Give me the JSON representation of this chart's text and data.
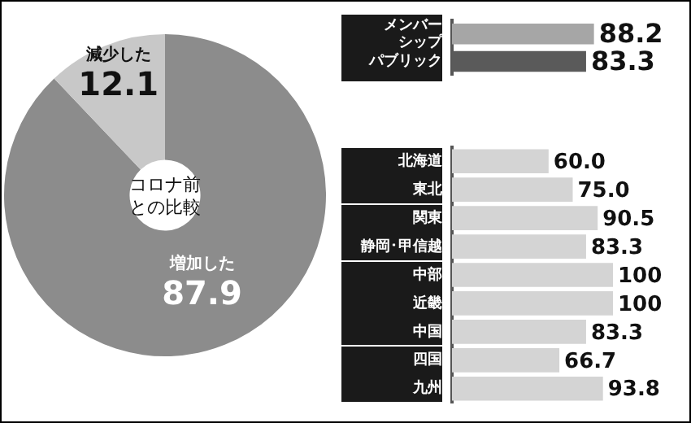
{
  "chart_data": [
    {
      "type": "donut",
      "categories": [
        "増加した",
        "減少した"
      ],
      "values": [
        87.9,
        12.1
      ],
      "colors": [
        "#8c8c8c",
        "#c8c8c8"
      ],
      "value_labels": [
        "87.9",
        "12.1"
      ],
      "annotations": [
        "コロナ前との比較"
      ]
    },
    {
      "type": "bar",
      "orientation": "horizontal",
      "categories": [
        "メンバーシップ",
        "パブリック"
      ],
      "values": [
        88.2,
        83.3
      ],
      "colors": [
        "#a6a6a6",
        "#5a5a5a"
      ],
      "tick_labels": "y",
      "value_labels": [
        "88.2",
        "83.3"
      ]
    },
    {
      "type": "bar",
      "orientation": "horizontal",
      "categories": [
        "北海道",
        "東北",
        "関東",
        "静岡･甲信越",
        "中部",
        "近畿",
        "中国",
        "四国",
        "九州"
      ],
      "values": [
        60.0,
        75.0,
        90.5,
        83.3,
        100,
        100,
        83.3,
        66.7,
        93.8
      ],
      "colors": [
        "#d4d4d4",
        "#d4d4d4",
        "#d4d4d4",
        "#d4d4d4",
        "#d4d4d4",
        "#d4d4d4",
        "#d4d4d4",
        "#d4d4d4",
        "#d4d4d4"
      ],
      "tick_labels": "y",
      "value_labels": [
        "60.0",
        "75.0",
        "90.5",
        "83.3",
        "100",
        "100",
        "83.3",
        "66.7",
        "93.8"
      ]
    }
  ]
}
